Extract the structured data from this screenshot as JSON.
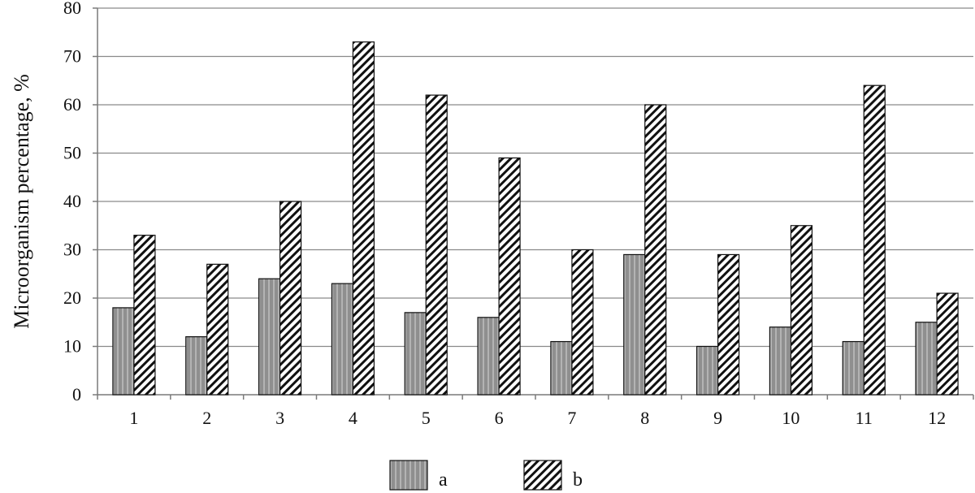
{
  "chart_data": {
    "type": "bar",
    "categories": [
      "1",
      "2",
      "3",
      "4",
      "5",
      "6",
      "7",
      "8",
      "9",
      "10",
      "11",
      "12"
    ],
    "series": [
      {
        "name": "a",
        "values": [
          18,
          12,
          24,
          23,
          17,
          16,
          11,
          29,
          10,
          14,
          11,
          15
        ],
        "pattern": "vertical-stripes",
        "color": "#8c8c8c"
      },
      {
        "name": "b",
        "values": [
          33,
          27,
          40,
          73,
          62,
          49,
          30,
          60,
          29,
          35,
          64,
          21
        ],
        "pattern": "diagonal-hatch",
        "color": "#ffffff"
      }
    ],
    "title": "",
    "xlabel": "",
    "ylabel": "Microorganism  percentage,  %",
    "ylim": [
      0,
      80
    ],
    "yticks": [
      "0",
      "10",
      "20",
      "30",
      "40",
      "50",
      "60",
      "70",
      "80"
    ],
    "grid": true,
    "legend_position": "bottom"
  }
}
